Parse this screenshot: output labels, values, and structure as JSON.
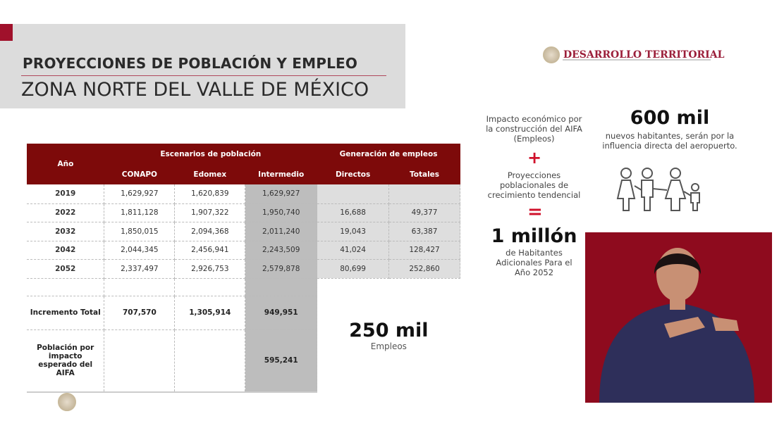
{
  "header": {
    "title": "PROYECCIONES DE POBLACIÓN Y EMPLEO",
    "subtitle": "ZONA NORTE DEL VALLE DE MÉXICO",
    "brand": "DESARROLLO TERRITORIAL",
    "brand_color": "#9b1f3a"
  },
  "table": {
    "col_year": "Año",
    "group_pop": "Escenarios de población",
    "group_emp": "Generación de empleos",
    "cols": [
      "CONAPO",
      "Edomex",
      "Intermedio",
      "Directos",
      "Totales"
    ],
    "rows": [
      {
        "year": "2019",
        "conapo": "1,629,927",
        "edomex": "1,620,839",
        "intermedio": "1,629,927",
        "directos": "",
        "totales": ""
      },
      {
        "year": "2022",
        "conapo": "1,811,128",
        "edomex": "1,907,322",
        "intermedio": "1,950,740",
        "directos": "16,688",
        "totales": "49,377"
      },
      {
        "year": "2032",
        "conapo": "1,850,015",
        "edomex": "2,094,368",
        "intermedio": "2,011,240",
        "directos": "19,043",
        "totales": "63,387"
      },
      {
        "year": "2042",
        "conapo": "2,044,345",
        "edomex": "2,456,941",
        "intermedio": "2,243,509",
        "directos": "41,024",
        "totales": "128,427"
      },
      {
        "year": "2052",
        "conapo": "2,337,497",
        "edomex": "2,926,753",
        "intermedio": "2,579,878",
        "directos": "80,699",
        "totales": "252,860"
      }
    ],
    "increment": {
      "label": "Incremento Total",
      "conapo": "707,570",
      "edomex": "1,305,914",
      "intermedio": "949,951"
    },
    "impact": {
      "label": "Población por impacto esperado del AIFA",
      "intermedio": "595,241"
    },
    "jobs_big": "250 mil",
    "jobs_label": "Empleos",
    "header_color": "#7d0a0a"
  },
  "side": {
    "impact_text": "Impacto económico por la construcción del AIFA (Empleos)",
    "plus": "+",
    "projections_text": "Proyecciones poblacionales de crecimiento tendencial",
    "equals": "=",
    "million": "1 millón",
    "million_text": "de Habitantes Adicionales Para el Año 2052",
    "six_hundred": "600 mil",
    "six_hundred_text": "nuevos habitantes, serán por la influencia directa del aeropuerto.",
    "accent": "#d0112b"
  },
  "video": {
    "background": "#8e0b1e"
  }
}
